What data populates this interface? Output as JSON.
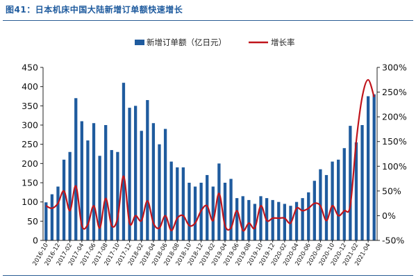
{
  "title": "图41：日本机床中国大陆新增订单额快速增长",
  "chart_data": {
    "type": "bar+line",
    "legend_position": "top",
    "series": [
      {
        "name": "新增订单额（亿日元）",
        "kind": "bar",
        "axis": "left",
        "color": "#1f5b9e",
        "values": [
          99,
          120,
          140,
          210,
          230,
          370,
          310,
          260,
          305,
          220,
          300,
          235,
          230,
          410,
          345,
          350,
          285,
          365,
          305,
          250,
          290,
          205,
          190,
          190,
          150,
          140,
          150,
          170,
          140,
          200,
          150,
          160,
          110,
          115,
          105,
          95,
          115,
          110,
          105,
          100,
          95,
          90,
          100,
          110,
          125,
          155,
          185,
          170,
          205,
          210,
          240,
          298,
          255,
          300,
          375,
          380
        ]
      },
      {
        "name": "增长率",
        "kind": "line",
        "axis": "right",
        "color": "#c0141b",
        "values": [
          20,
          15,
          25,
          50,
          10,
          60,
          -20,
          -18,
          20,
          -25,
          35,
          -20,
          -5,
          80,
          -15,
          0,
          -10,
          30,
          -15,
          -25,
          0,
          -30,
          -5,
          0,
          -20,
          -15,
          10,
          20,
          -10,
          45,
          -20,
          -25,
          10,
          -30,
          -15,
          -25,
          20,
          -10,
          -5,
          -5,
          -5,
          -15,
          15,
          10,
          15,
          25,
          20,
          -10,
          20,
          0,
          10,
          20,
          150,
          240,
          275,
          240
        ]
      }
    ],
    "x_tick_labels": [
      "2016-10",
      "2016-12",
      "2017-02",
      "2017-04",
      "2017-06",
      "2017-08",
      "2017-10",
      "2017-12",
      "2018-02",
      "2018-04",
      "2018-06",
      "2018-08",
      "2018-10",
      "2018-12",
      "2019-02",
      "2019-04",
      "2019-06",
      "2019-08",
      "2019-10",
      "2019-12",
      "2020-02",
      "2020-04",
      "2020-06",
      "2020-08",
      "2020-10",
      "2020-12",
      "2021-02",
      "2021-04"
    ],
    "y_left": {
      "min": 0,
      "max": 450,
      "ticks": [
        "0",
        "50",
        "100",
        "150",
        "200",
        "250",
        "300",
        "350",
        "400",
        "450"
      ]
    },
    "y_right": {
      "min": -50,
      "max": 300,
      "ticks": [
        "-50%",
        "0%",
        "50%",
        "100%",
        "150%",
        "200%",
        "250%",
        "300%"
      ]
    },
    "grid": false
  }
}
